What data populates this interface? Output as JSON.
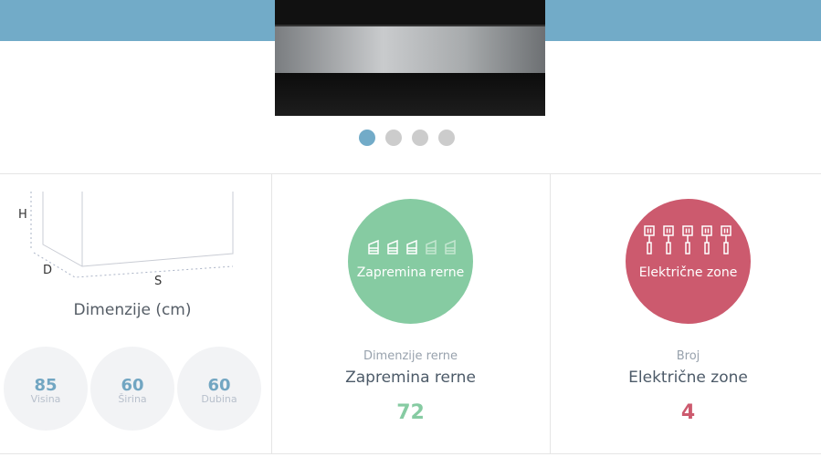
{
  "carousel": {
    "slides": 4,
    "active": 0
  },
  "dimensions": {
    "title": "Dimenzije (cm)",
    "axis_labels": {
      "h": "H",
      "d": "D",
      "s": "S"
    },
    "items": [
      {
        "value": "85",
        "label": "Visina"
      },
      {
        "value": "60",
        "label": "Širina"
      },
      {
        "value": "60",
        "label": "Dubina"
      }
    ]
  },
  "features": [
    {
      "badge": "Zapremina rerne",
      "subtitle": "Dimenzije rerne",
      "name": "Zapremina rerne",
      "value": "72",
      "color": "#86cba2",
      "icon": "cake-slices-icon",
      "level": "3 of 5"
    },
    {
      "badge": "Električne zone",
      "subtitle": "Broj",
      "name": "Električne zone",
      "value": "4",
      "color": "#cc5a6e",
      "icon": "hob-zones-icon"
    }
  ]
}
